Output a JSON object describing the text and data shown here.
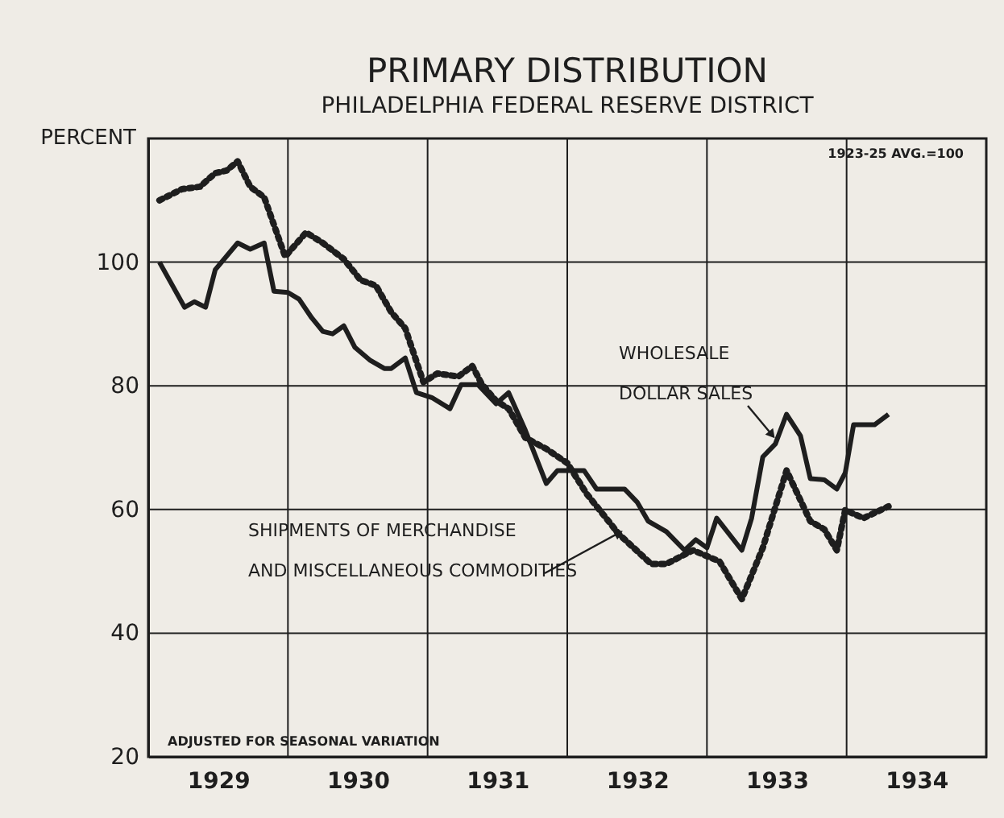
{
  "chart_data": {
    "type": "line",
    "title": "PRIMARY DISTRIBUTION",
    "subtitle": "PHILADELPHIA FEDERAL RESERVE DISTRICT",
    "ylabel": "PERCENT",
    "annotations": [
      "1923-25 AVG.=100",
      "ADJUSTED FOR SEASONAL VARIATION"
    ],
    "xlim": [
      1929,
      1935
    ],
    "xticks": [
      {
        "value": 1929,
        "label": null
      },
      {
        "value": 1929.5,
        "label": "1929"
      },
      {
        "value": 1930,
        "label": null
      },
      {
        "value": 1930.5,
        "label": "1930"
      },
      {
        "value": 1931,
        "label": null
      },
      {
        "value": 1931.5,
        "label": "1931"
      },
      {
        "value": 1932,
        "label": null
      },
      {
        "value": 1932.5,
        "label": "1932"
      },
      {
        "value": 1933,
        "label": null
      },
      {
        "value": 1933.5,
        "label": "1933"
      },
      {
        "value": 1934,
        "label": null
      },
      {
        "value": 1934.5,
        "label": "1934"
      },
      {
        "value": 1935,
        "label": null
      }
    ],
    "ylim": [
      20,
      120
    ],
    "yticks": [
      20,
      40,
      60,
      80,
      100,
      {
        "value": 120,
        "label": null
      }
    ],
    "grid": true,
    "legend": false,
    "marker": "none",
    "series": [
      {
        "name": "WHOLESALE\nDOLLAR SALES",
        "color": "#1e1e1e",
        "line_style": "solid",
        "x": [
          1929.08,
          1929.26,
          1929.33,
          1929.41,
          1929.48,
          1929.64,
          1929.73,
          1929.83,
          1929.9,
          1930.0,
          1930.08,
          1930.17,
          1930.25,
          1930.32,
          1930.4,
          1930.48,
          1930.59,
          1930.69,
          1930.74,
          1930.84,
          1930.92,
          1931.03,
          1931.16,
          1931.24,
          1931.36,
          1931.49,
          1931.58,
          1931.7,
          1931.85,
          1931.93,
          1932.12,
          1932.21,
          1932.41,
          1932.5,
          1932.58,
          1932.71,
          1932.84,
          1932.92,
          1933.0,
          1933.07,
          1933.25,
          1933.32,
          1933.4,
          1933.49,
          1933.57,
          1933.67,
          1933.74,
          1933.84,
          1933.93,
          1933.99,
          1934.05,
          1934.2,
          1934.3
        ],
        "values": [
          100,
          92.7,
          93.6,
          92.7,
          98.8,
          103.1,
          102.1,
          103.1,
          95.3,
          95.1,
          94,
          91,
          88.8,
          88.4,
          89.7,
          86.2,
          84.1,
          82.8,
          82.8,
          84.5,
          78.9,
          78.1,
          76.3,
          80.2,
          80.2,
          77.1,
          78.9,
          72.8,
          64.2,
          66.3,
          66.3,
          63.3,
          63.3,
          61.2,
          58.1,
          56.4,
          53.4,
          55.1,
          53.8,
          58.6,
          53.4,
          58.6,
          68.5,
          70.6,
          75.4,
          71.9,
          65,
          64.8,
          63.3,
          65.9,
          73.7,
          73.7,
          75.4
        ]
      },
      {
        "name": "SHIPMENTS OF MERCHANDISE\nAND MISCELLANEOUS COMMODITIES",
        "color": "#1e1e1e",
        "line_style": "dotted",
        "x": [
          1929.08,
          1929.24,
          1929.37,
          1929.48,
          1929.56,
          1929.64,
          1929.73,
          1929.83,
          1929.98,
          1930.13,
          1930.25,
          1930.4,
          1930.52,
          1930.63,
          1930.74,
          1930.84,
          1930.97,
          1931.07,
          1931.22,
          1931.32,
          1931.39,
          1931.49,
          1931.58,
          1931.7,
          1931.85,
          1932.0,
          1932.14,
          1932.37,
          1932.6,
          1932.71,
          1932.9,
          1933.09,
          1933.25,
          1933.4,
          1933.57,
          1933.74,
          1933.84,
          1933.93,
          1933.99,
          1934.12,
          1934.3
        ],
        "values": [
          110,
          111.8,
          112.2,
          114.4,
          114.8,
          116.3,
          112.2,
          110.5,
          100.9,
          104.8,
          103.1,
          100.5,
          97.1,
          96.2,
          91.9,
          89.3,
          80.6,
          82,
          81.5,
          83.2,
          80.2,
          77.6,
          76.3,
          71.6,
          69.8,
          67.5,
          62.5,
          56,
          51.2,
          51.2,
          53.4,
          51.6,
          45.5,
          53.8,
          66.3,
          58.1,
          56.8,
          53.4,
          59.9,
          58.6,
          60.5
        ]
      }
    ]
  }
}
